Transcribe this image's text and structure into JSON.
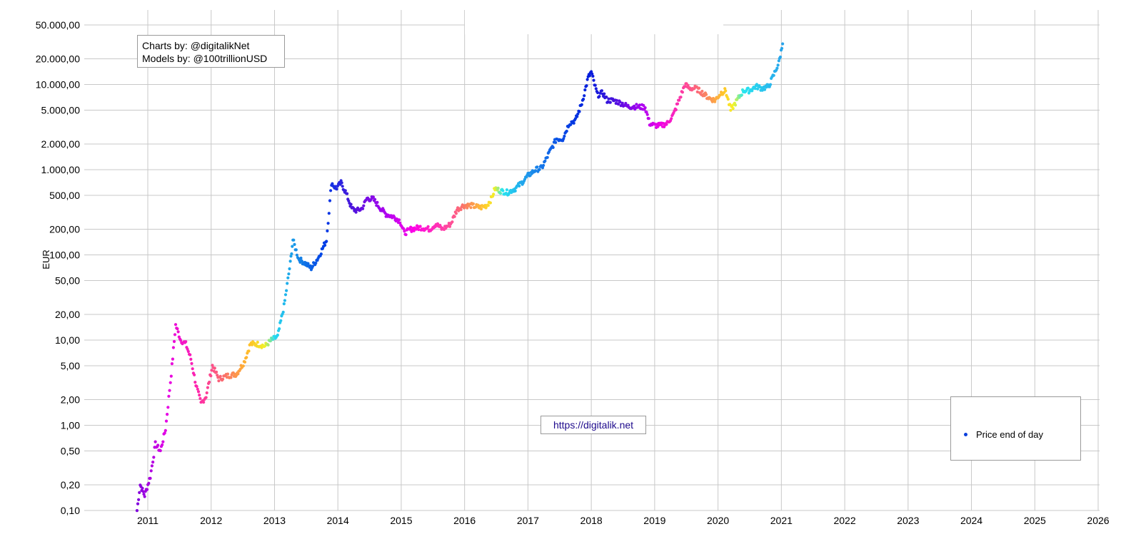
{
  "chart_data": {
    "type": "scatter",
    "title": "",
    "xlabel": "",
    "ylabel": "EUR",
    "y_scale": "log",
    "ylim": [
      0.1,
      100000
    ],
    "xlim": [
      2010.5,
      2026.0
    ],
    "y_ticks": [
      0.1,
      0.2,
      0.5,
      1,
      2,
      5,
      10,
      20,
      50,
      100,
      200,
      500,
      1000,
      2000,
      5000,
      10000,
      20000,
      50000
    ],
    "y_tick_labels": [
      "0,10",
      "0,20",
      "0,50",
      "1,00",
      "2,00",
      "5,00",
      "10,00",
      "20,00",
      "50,00",
      "100,00",
      "200,00",
      "500,00",
      "1.000,00",
      "2.000,00",
      "5.000,00",
      "10.000,00",
      "20.000,00",
      "50.000,00"
    ],
    "x_ticks": [
      2011,
      2012,
      2013,
      2014,
      2015,
      2016,
      2017,
      2018,
      2019,
      2020,
      2021,
      2022,
      2023,
      2024,
      2025,
      2026
    ],
    "x_tick_labels": [
      "2011",
      "2012",
      "2013",
      "2014",
      "2015",
      "2016",
      "2017",
      "2018",
      "2019",
      "2020",
      "2021",
      "2022",
      "2023",
      "2024",
      "2025",
      "2026"
    ],
    "grid": true,
    "legend_placement": "bottom-right",
    "series": [
      {
        "name": "Price end of day",
        "marker_color": "#0a3fdc",
        "points": [
          [
            2010.83,
            0.1
          ],
          [
            2010.88,
            0.2
          ],
          [
            2010.95,
            0.15
          ],
          [
            2011.04,
            0.25
          ],
          [
            2011.12,
            0.6
          ],
          [
            2011.2,
            0.5
          ],
          [
            2011.28,
            0.9
          ],
          [
            2011.37,
            4.0
          ],
          [
            2011.44,
            15.0
          ],
          [
            2011.52,
            10.0
          ],
          [
            2011.6,
            9.0
          ],
          [
            2011.68,
            6.0
          ],
          [
            2011.76,
            3.0
          ],
          [
            2011.84,
            1.8
          ],
          [
            2011.92,
            2.2
          ],
          [
            2012.02,
            5.0
          ],
          [
            2012.12,
            3.5
          ],
          [
            2012.25,
            3.8
          ],
          [
            2012.4,
            4.0
          ],
          [
            2012.52,
            5.5
          ],
          [
            2012.62,
            9.0
          ],
          [
            2012.72,
            9.0
          ],
          [
            2012.85,
            8.5
          ],
          [
            2012.95,
            10.0
          ],
          [
            2013.05,
            11.0
          ],
          [
            2013.15,
            25.0
          ],
          [
            2013.25,
            80.0
          ],
          [
            2013.29,
            150.0
          ],
          [
            2013.38,
            90.0
          ],
          [
            2013.48,
            80.0
          ],
          [
            2013.58,
            70.0
          ],
          [
            2013.7,
            95.0
          ],
          [
            2013.82,
            150.0
          ],
          [
            2013.9,
            700.0
          ],
          [
            2013.97,
            600.0
          ],
          [
            2014.05,
            700.0
          ],
          [
            2014.12,
            550.0
          ],
          [
            2014.22,
            350.0
          ],
          [
            2014.3,
            330.0
          ],
          [
            2014.38,
            350.0
          ],
          [
            2014.46,
            460.0
          ],
          [
            2014.56,
            450.0
          ],
          [
            2014.66,
            360.0
          ],
          [
            2014.76,
            300.0
          ],
          [
            2014.88,
            280.0
          ],
          [
            2014.98,
            250.0
          ],
          [
            2015.05,
            180.0
          ],
          [
            2015.15,
            200.0
          ],
          [
            2015.3,
            210.0
          ],
          [
            2015.45,
            200.0
          ],
          [
            2015.55,
            230.0
          ],
          [
            2015.65,
            200.0
          ],
          [
            2015.78,
            230.0
          ],
          [
            2015.88,
            340.0
          ],
          [
            2015.98,
            380.0
          ],
          [
            2016.1,
            380.0
          ],
          [
            2016.25,
            360.0
          ],
          [
            2016.35,
            380.0
          ],
          [
            2016.42,
            450.0
          ],
          [
            2016.48,
            600.0
          ],
          [
            2016.58,
            560.0
          ],
          [
            2016.68,
            540.0
          ],
          [
            2016.8,
            600.0
          ],
          [
            2016.9,
            700.0
          ],
          [
            2017.0,
            850.0
          ],
          [
            2017.12,
            1000.0
          ],
          [
            2017.22,
            1050.0
          ],
          [
            2017.32,
            1500.0
          ],
          [
            2017.45,
            2300.0
          ],
          [
            2017.55,
            2300.0
          ],
          [
            2017.65,
            3500.0
          ],
          [
            2017.75,
            3800.0
          ],
          [
            2017.85,
            6000.0
          ],
          [
            2017.95,
            12000.0
          ],
          [
            2018.0,
            14000.0
          ],
          [
            2018.05,
            10000.0
          ],
          [
            2018.1,
            7500.0
          ],
          [
            2018.18,
            8000.0
          ],
          [
            2018.25,
            6500.0
          ],
          [
            2018.35,
            6500.0
          ],
          [
            2018.48,
            6000.0
          ],
          [
            2018.58,
            5500.0
          ],
          [
            2018.7,
            5500.0
          ],
          [
            2018.85,
            5400.0
          ],
          [
            2018.92,
            3500.0
          ],
          [
            2019.0,
            3300.0
          ],
          [
            2019.1,
            3300.0
          ],
          [
            2019.2,
            3500.0
          ],
          [
            2019.3,
            4500.0
          ],
          [
            2019.4,
            7000.0
          ],
          [
            2019.48,
            10000.0
          ],
          [
            2019.55,
            9000.0
          ],
          [
            2019.65,
            9000.0
          ],
          [
            2019.75,
            8000.0
          ],
          [
            2019.85,
            7000.0
          ],
          [
            2019.95,
            6500.0
          ],
          [
            2020.05,
            8000.0
          ],
          [
            2020.12,
            8500.0
          ],
          [
            2020.2,
            5000.0
          ],
          [
            2020.3,
            6500.0
          ],
          [
            2020.4,
            8500.0
          ],
          [
            2020.5,
            8500.0
          ],
          [
            2020.6,
            9500.0
          ],
          [
            2020.7,
            9000.0
          ],
          [
            2020.8,
            9500.0
          ],
          [
            2020.88,
            13000.0
          ],
          [
            2020.96,
            18000.0
          ],
          [
            2021.02,
            30000.0
          ]
        ]
      }
    ]
  },
  "credits": {
    "line1": "Charts by: @digitalikNet",
    "line2": "Models by: @100trillionUSD"
  },
  "url_label": "https://digitalik.net",
  "legend": {
    "label": "Price end of day"
  }
}
